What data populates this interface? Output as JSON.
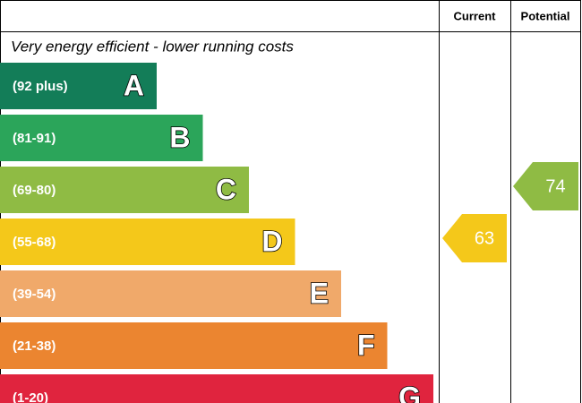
{
  "chart_data": {
    "type": "epc",
    "subtitle": "Very energy efficient - lower running costs",
    "columns": [
      "Current",
      "Potential"
    ],
    "bands": [
      {
        "range": "(92 plus)",
        "letter": "A",
        "color": "#137d58"
      },
      {
        "range": "(81-91)",
        "letter": "B",
        "color": "#2ba55a"
      },
      {
        "range": "(69-80)",
        "letter": "C",
        "color": "#8fbb44"
      },
      {
        "range": "(55-68)",
        "letter": "D",
        "color": "#f4c81a"
      },
      {
        "range": "(39-54)",
        "letter": "E",
        "color": "#f0a96a"
      },
      {
        "range": "(21-38)",
        "letter": "F",
        "color": "#eb8530"
      },
      {
        "range": "(1-20)",
        "letter": "G",
        "color": "#e0243e"
      }
    ],
    "series": [
      {
        "name": "Current",
        "values": [
          63
        ],
        "color": "#f4c81a"
      },
      {
        "name": "Potential",
        "values": [
          74
        ],
        "color": "#8fbb44"
      }
    ]
  }
}
